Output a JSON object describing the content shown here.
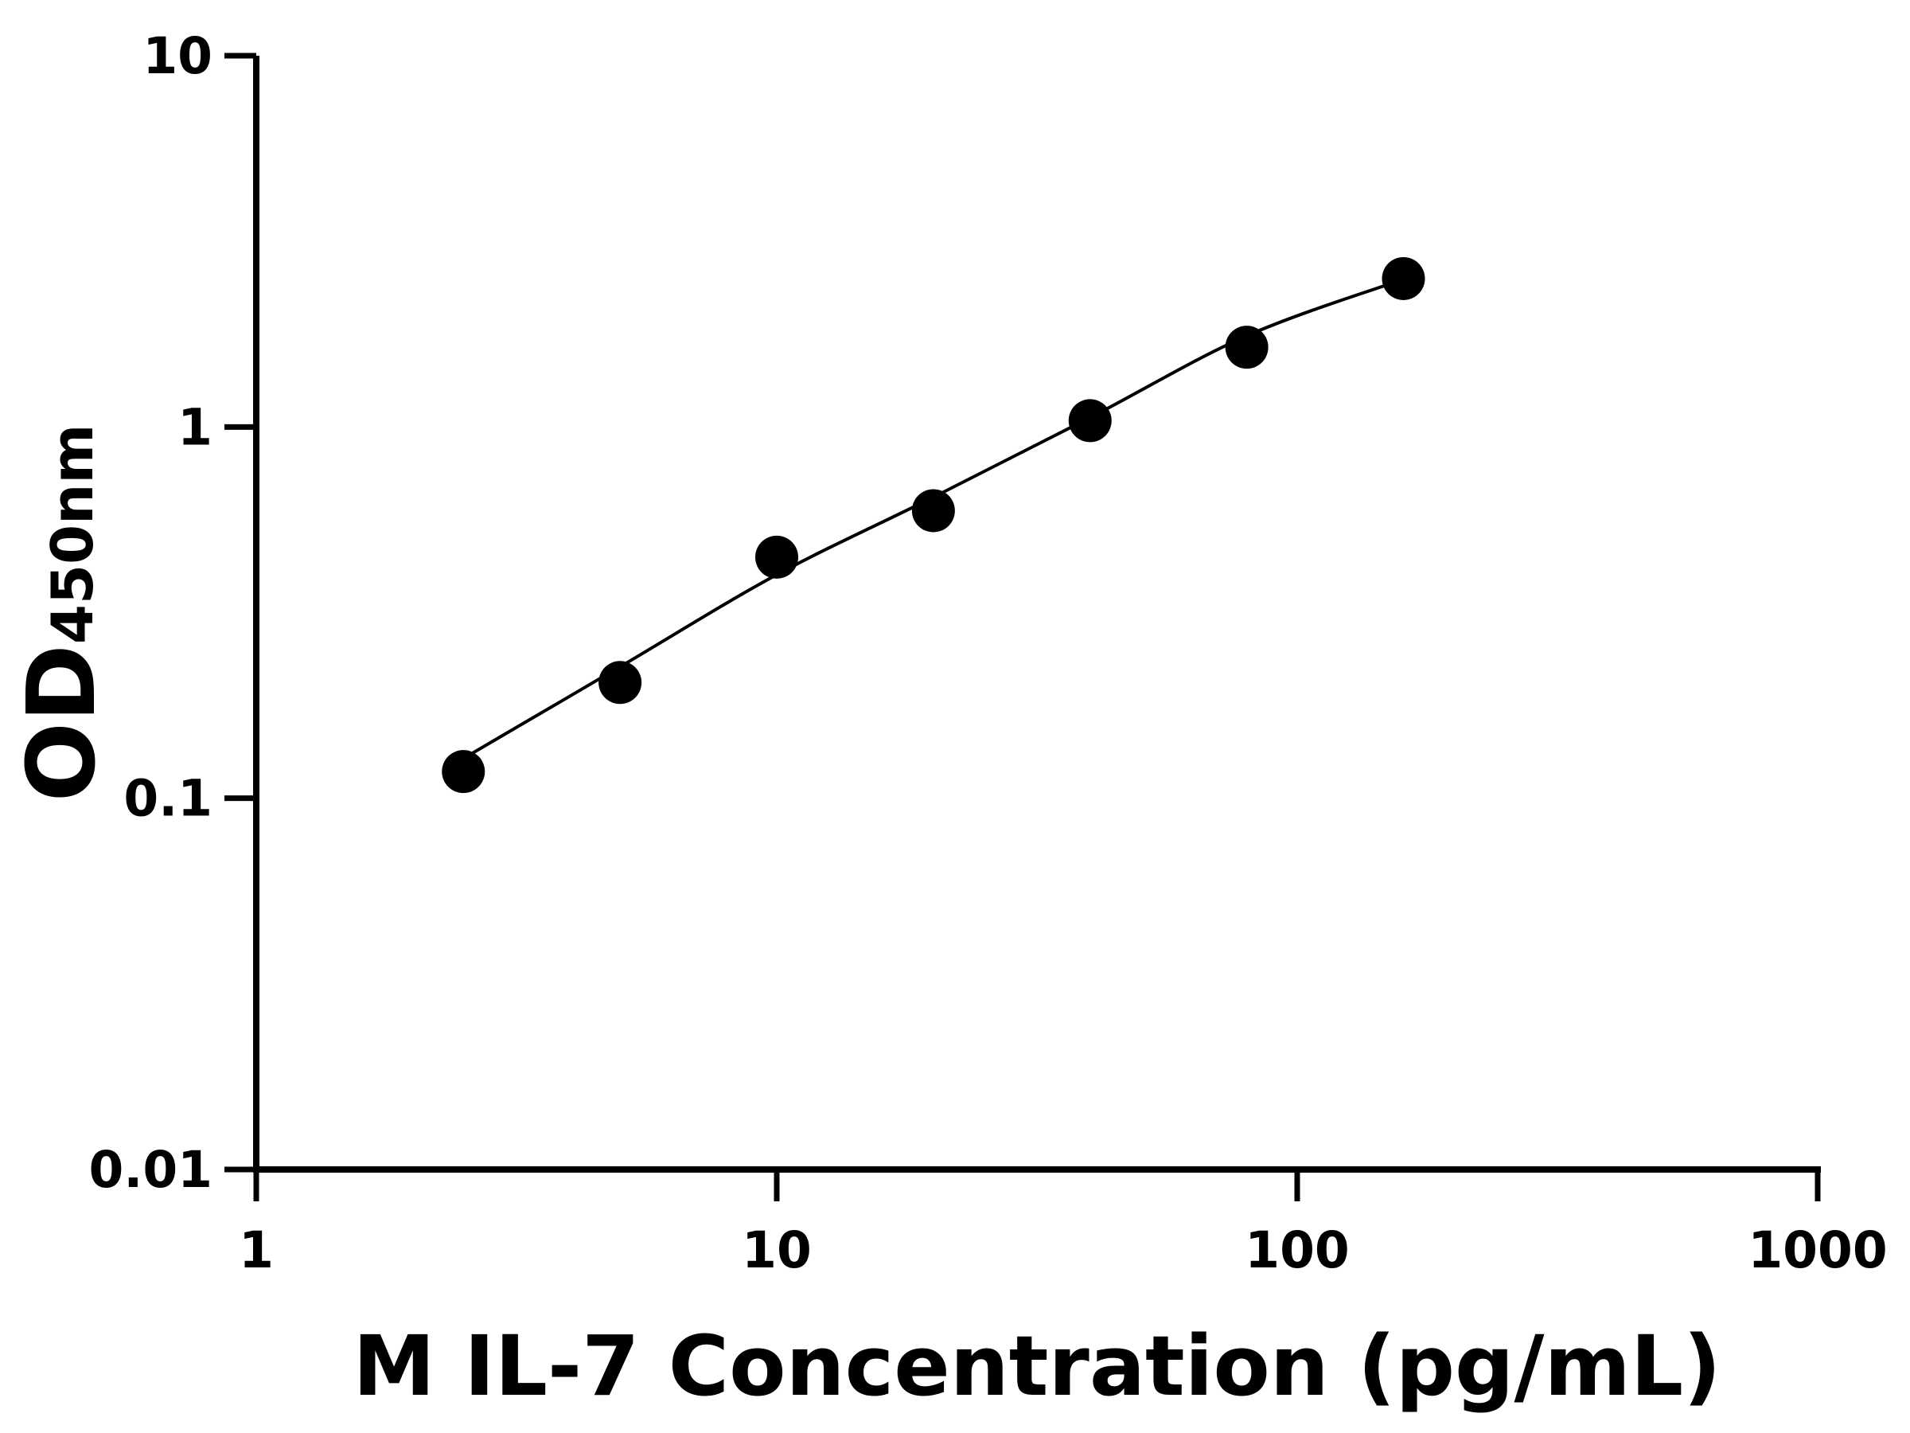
{
  "chart_data": {
    "type": "scatter",
    "x_label": "M IL-7 Concentration (pg/mL)",
    "y_label": "OD",
    "y_label_sub": "450nm",
    "x_scale": "log",
    "y_scale": "log",
    "xlim": [
      1,
      1000
    ],
    "ylim": [
      0.01,
      10
    ],
    "xticks": [
      1,
      10,
      100,
      1000
    ],
    "yticks": [
      0.01,
      0.1,
      1,
      10
    ],
    "grid": false,
    "color": "#000000",
    "x": [
      2.5,
      5,
      10,
      20,
      40,
      80,
      160
    ],
    "values": [
      0.118,
      0.205,
      0.446,
      0.595,
      1.04,
      1.64,
      2.51
    ],
    "curve": {
      "x": [
        2.5,
        5,
        10,
        20,
        40,
        80,
        160
      ],
      "values": [
        0.128,
        0.226,
        0.4,
        0.647,
        1.06,
        1.76,
        2.5
      ]
    }
  }
}
